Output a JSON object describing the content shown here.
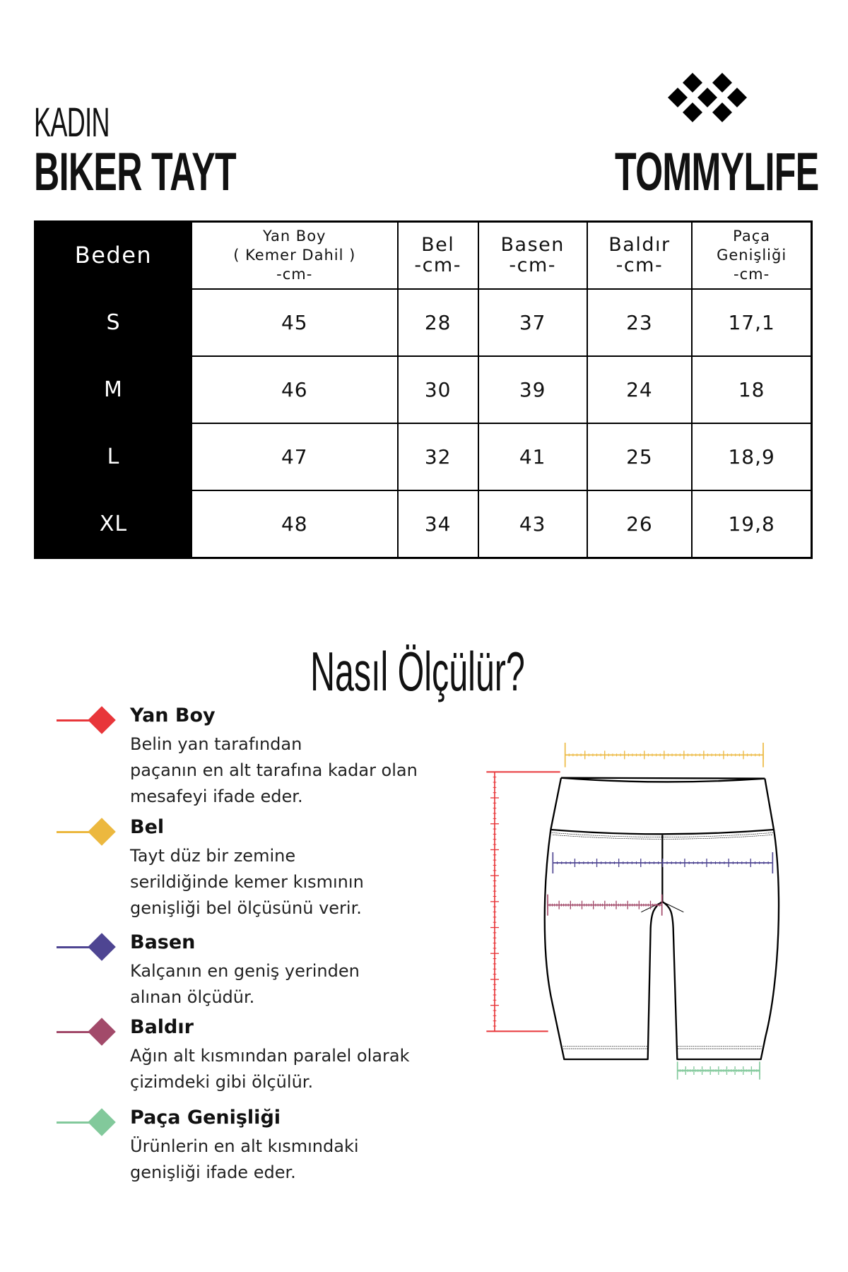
{
  "header": {
    "category": "KADIN",
    "product": "BIKER TAYT",
    "brand": "TOMMYLIFE"
  },
  "table": {
    "headers": [
      {
        "lines": [
          "Beden"
        ]
      },
      {
        "lines": [
          "Yan Boy",
          "( Kemer Dahil )",
          "-cm-"
        ]
      },
      {
        "lines": [
          "Bel",
          "-cm-"
        ]
      },
      {
        "lines": [
          "Basen",
          "-cm-"
        ]
      },
      {
        "lines": [
          "Baldır",
          "-cm-"
        ]
      },
      {
        "lines": [
          "Paça",
          "Genişliği",
          "-cm-"
        ]
      }
    ],
    "rows": [
      {
        "size": "S",
        "values": [
          "45",
          "28",
          "37",
          "23",
          "17,1"
        ]
      },
      {
        "size": "M",
        "values": [
          "46",
          "30",
          "39",
          "24",
          "18"
        ]
      },
      {
        "size": "L",
        "values": [
          "47",
          "32",
          "41",
          "25",
          "18,9"
        ]
      },
      {
        "size": "XL",
        "values": [
          "48",
          "34",
          "43",
          "26",
          "19,8"
        ]
      }
    ]
  },
  "guide": {
    "title": "Nasıl Ölçülür?",
    "items": [
      {
        "title": "Yan Boy",
        "color": "#e8363a",
        "lines": [
          "Belin yan tarafından",
          "paçanın en alt tarafına kadar olan",
          "mesafeyi ifade eder."
        ]
      },
      {
        "title": "Bel",
        "color": "#ecb83f",
        "lines": [
          "Tayt düz bir zemine",
          "serildiğinde kemer kısmının",
          "genişliği bel ölçüsünü verir."
        ]
      },
      {
        "title": "Basen",
        "color": "#4e4592",
        "lines": [
          "Kalçanın en geniş yerinden",
          "alınan ölçüdür."
        ]
      },
      {
        "title": "Baldır",
        "color": "#a24a6a",
        "lines": [
          "Ağın alt kısmından paralel olarak",
          "çizimdeki gibi ölçülür."
        ]
      },
      {
        "title": "Paça Genişliği",
        "color": "#82c99b",
        "lines": [
          "Ürünlerin en alt kısmındaki",
          "genişliği ifade eder."
        ]
      }
    ]
  }
}
